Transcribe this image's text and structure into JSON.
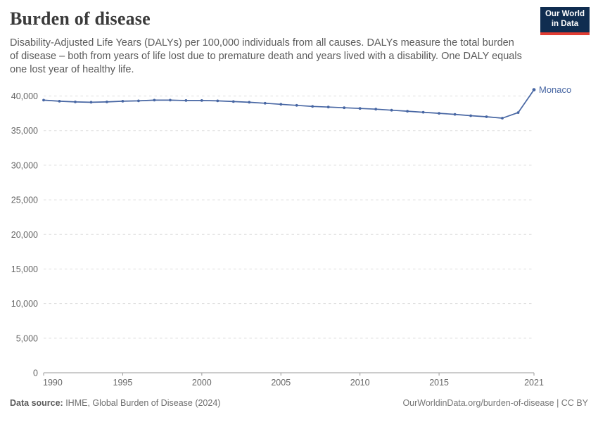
{
  "header": {
    "title": "Burden of disease",
    "subtitle": "Disability-Adjusted Life Years (DALYs) per 100,000 individuals from all causes. DALYs measure the total burden of disease – both from years of life lost due to premature death and years lived with a disability. One DALY equals one lost year of healthy life.",
    "logo": {
      "line1": "Our World",
      "line2": "in Data"
    }
  },
  "chart_data": {
    "type": "line",
    "title": "Burden of disease",
    "ylabel": "",
    "xlabel": "",
    "xlim": [
      1990,
      2021
    ],
    "ylim": [
      0,
      40000
    ],
    "grid": "horizontal-dashed",
    "legend_position": "end-of-line-label",
    "x_ticks": [
      1990,
      1995,
      2000,
      2005,
      2010,
      2015,
      2021
    ],
    "y_ticks": [
      0,
      5000,
      10000,
      15000,
      20000,
      25000,
      30000,
      35000,
      40000
    ],
    "series": [
      {
        "name": "Monaco",
        "color": "#4766A3",
        "x": [
          1990,
          1991,
          1992,
          1993,
          1994,
          1995,
          1996,
          1997,
          1998,
          1999,
          2000,
          2001,
          2002,
          2003,
          2004,
          2005,
          2006,
          2007,
          2008,
          2009,
          2010,
          2011,
          2012,
          2013,
          2014,
          2015,
          2016,
          2017,
          2018,
          2019,
          2020,
          2021
        ],
        "values": [
          39400,
          39250,
          39150,
          39100,
          39150,
          39250,
          39300,
          39400,
          39400,
          39350,
          39350,
          39300,
          39200,
          39100,
          38950,
          38800,
          38650,
          38500,
          38400,
          38300,
          38200,
          38100,
          37950,
          37800,
          37650,
          37500,
          37350,
          37150,
          37000,
          36800,
          37600,
          40900
        ]
      }
    ]
  },
  "footer": {
    "datasource_label": "Data source:",
    "datasource_value": " IHME, Global Burden of Disease (2024)",
    "credit": "OurWorldinData.org/burden-of-disease | CC BY"
  },
  "colors": {
    "line": "#4766A3",
    "grid": "#dddddd",
    "axis": "#9a9a9a",
    "tick_text": "#666666",
    "title": "#3b3b3b",
    "subtitle": "#5b5b5b",
    "logo_bg": "#102d50",
    "logo_red": "#e23d33"
  }
}
